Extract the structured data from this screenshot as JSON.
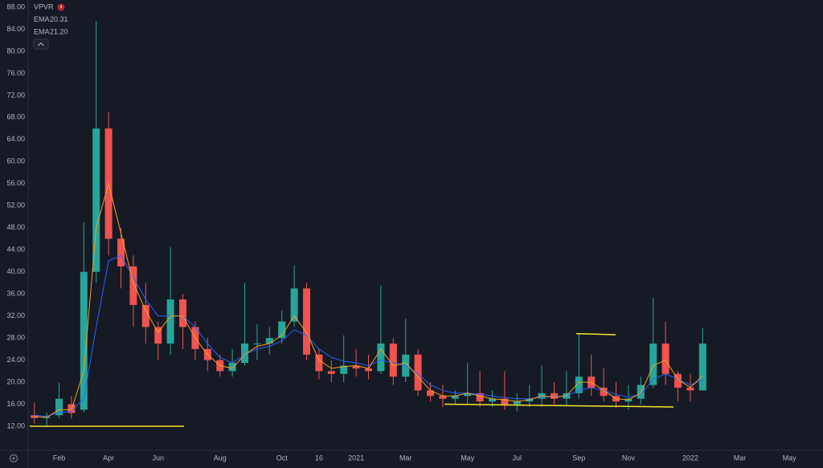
{
  "chart_data": {
    "type": "candlestick",
    "legend": [
      {
        "name": "VPVR"
      },
      {
        "name": "EMA",
        "value": "20.31",
        "color": "#2962ff"
      },
      {
        "name": "EMA",
        "value": "21.20",
        "color": "#f7a21b"
      }
    ],
    "categories": [
      null,
      null,
      "Feb",
      null,
      null,
      null,
      "Apr",
      null,
      null,
      null,
      "Jun",
      null,
      null,
      null,
      null,
      "Aug",
      null,
      null,
      null,
      null,
      "Oct",
      null,
      null,
      "16",
      null,
      null,
      "2021",
      null,
      null,
      null,
      "Mar",
      null,
      null,
      null,
      null,
      "May",
      null,
      null,
      null,
      "Jul",
      null,
      null,
      null,
      null,
      "Sep",
      null,
      null,
      null,
      "Nov",
      null,
      null,
      null,
      null,
      "2022",
      null,
      null,
      null,
      "Mar",
      null,
      null,
      null,
      "May",
      null,
      null
    ],
    "open": [
      14,
      13.5,
      14,
      16,
      15,
      40,
      66,
      46,
      41,
      34,
      30,
      27,
      35,
      30,
      26,
      24,
      22,
      23.5,
      27,
      27,
      28,
      31,
      37,
      25,
      22,
      21.5,
      23,
      22.5,
      22,
      27,
      21,
      25,
      18.5,
      17.5,
      17,
      17.5,
      18,
      16.5,
      17,
      16,
      16.5,
      17,
      18,
      17,
      18,
      21,
      19,
      17.5,
      16.5,
      17,
      19.5,
      27,
      21.5,
      19,
      18.5,
      null,
      null,
      null,
      null,
      null,
      null,
      null,
      null,
      null
    ],
    "high": [
      16.3,
      14.5,
      19.9,
      17.5,
      49,
      85.5,
      69,
      48,
      43,
      38,
      31,
      44.5,
      36,
      31,
      28,
      25,
      26,
      38,
      30.5,
      30,
      33,
      41.2,
      38,
      26,
      24,
      28.5,
      26,
      25,
      37.5,
      28,
      31.5,
      26,
      20,
      19.5,
      18.5,
      23.5,
      22,
      18.5,
      22,
      18,
      19.5,
      23,
      20,
      22,
      28.8,
      25,
      22.5,
      20,
      19.5,
      21,
      35.3,
      31,
      22,
      21.5,
      29.8,
      null,
      null,
      null,
      null,
      null,
      null,
      null,
      null,
      null
    ],
    "low": [
      12.5,
      11.8,
      13.5,
      13.4,
      14.5,
      38,
      43,
      37,
      30,
      27,
      24,
      25,
      26,
      24,
      22,
      21,
      21,
      23,
      24,
      25,
      27,
      30,
      24,
      20.5,
      20,
      20,
      21,
      20.5,
      21.5,
      19.5,
      20,
      17.5,
      16.5,
      15.5,
      16,
      16,
      15.5,
      15.5,
      15,
      14.7,
      15.5,
      15.5,
      16,
      15.7,
      17,
      17.5,
      16.5,
      15.3,
      15,
      16,
      19,
      19.5,
      16.5,
      16.5,
      18.5,
      null,
      null,
      null,
      null,
      null,
      null,
      null,
      null,
      null
    ],
    "close": [
      13.5,
      13.7,
      17,
      14.4,
      40,
      66,
      46,
      41,
      34,
      30,
      27,
      35,
      30,
      26,
      24,
      22,
      23.5,
      27,
      27,
      28,
      31,
      37,
      25,
      22,
      21.5,
      23,
      22.5,
      22,
      27,
      21,
      25,
      18.5,
      17.5,
      17,
      17.5,
      18,
      16.5,
      17,
      16,
      16.5,
      17,
      18,
      17,
      18,
      21,
      19,
      17.5,
      16.5,
      17,
      19.5,
      27,
      21.5,
      19,
      18.5,
      27,
      null,
      null,
      null,
      null,
      null,
      null,
      null,
      null,
      null
    ],
    "up_color": "#26a69a",
    "down_color": "#ef5350",
    "series": [
      {
        "name": "EMA",
        "color": "#2962ff",
        "values": [
          14,
          13.8,
          14.5,
          14.7,
          17,
          30,
          42,
          43,
          39,
          35,
          32,
          32,
          32,
          30,
          27,
          24.5,
          23.5,
          25,
          26,
          26.5,
          27.5,
          29.5,
          28.5,
          26,
          24.5,
          23.8,
          23.5,
          23,
          24,
          23.5,
          23,
          21.5,
          19.5,
          18.5,
          18,
          18,
          17.8,
          17.5,
          17.2,
          17,
          17,
          17.3,
          17.4,
          17.5,
          18.5,
          19,
          18.5,
          17.8,
          17.3,
          17.8,
          20.5,
          21.5,
          20.5,
          19.5,
          20.31,
          null,
          null,
          null,
          null,
          null,
          null,
          null,
          null,
          null
        ]
      },
      {
        "name": "EMA",
        "color": "#f7a21b",
        "values": [
          13.8,
          13.6,
          15,
          15,
          22,
          48,
          56,
          47,
          38,
          33,
          29,
          32,
          32,
          28,
          25,
          23,
          22.5,
          25,
          26.5,
          27,
          28.5,
          32,
          29,
          24,
          22.5,
          22.8,
          23,
          22.5,
          26,
          23,
          23.5,
          21,
          18.5,
          17.5,
          17.5,
          18,
          17.5,
          17,
          16.8,
          16.5,
          16.8,
          17.5,
          17.3,
          17.5,
          20,
          20,
          18.5,
          17,
          16.8,
          18,
          23,
          24,
          20.5,
          19,
          21.2,
          null,
          null,
          null,
          null,
          null,
          null,
          null,
          null,
          null
        ]
      }
    ],
    "trend_lines": [
      [
        12,
        12
      ],
      [
        16,
        15.5
      ],
      [
        28.8,
        28.6
      ]
    ],
    "trend_color": "#f5e425",
    "ylim": [
      7.78,
      89.31
    ],
    "yticks": [
      {
        "value": 12,
        "label": "12.00"
      },
      {
        "value": 16,
        "label": "16.00"
      },
      {
        "value": 20,
        "label": "20.00"
      },
      {
        "value": 24,
        "label": "24.00"
      },
      {
        "value": 28,
        "label": "28.00"
      },
      {
        "value": 32,
        "label": "32.00"
      },
      {
        "value": 36,
        "label": "36.00"
      },
      {
        "value": 40,
        "label": "40.00"
      },
      {
        "value": 44,
        "label": "44.00"
      },
      {
        "value": 48,
        "label": "48.00"
      },
      {
        "value": 52,
        "label": "52.00"
      },
      {
        "value": 56,
        "label": "56.00"
      },
      {
        "value": 60,
        "label": "60.00"
      },
      {
        "value": 64,
        "label": "64.00"
      },
      {
        "value": 68,
        "label": "68.00"
      },
      {
        "value": 72,
        "label": "72.00"
      },
      {
        "value": 76,
        "label": "76.00"
      },
      {
        "value": 80,
        "label": "80.00"
      },
      {
        "value": 84,
        "label": "84.00"
      },
      {
        "value": 88,
        "label": "88.00"
      }
    ],
    "grid": false
  }
}
